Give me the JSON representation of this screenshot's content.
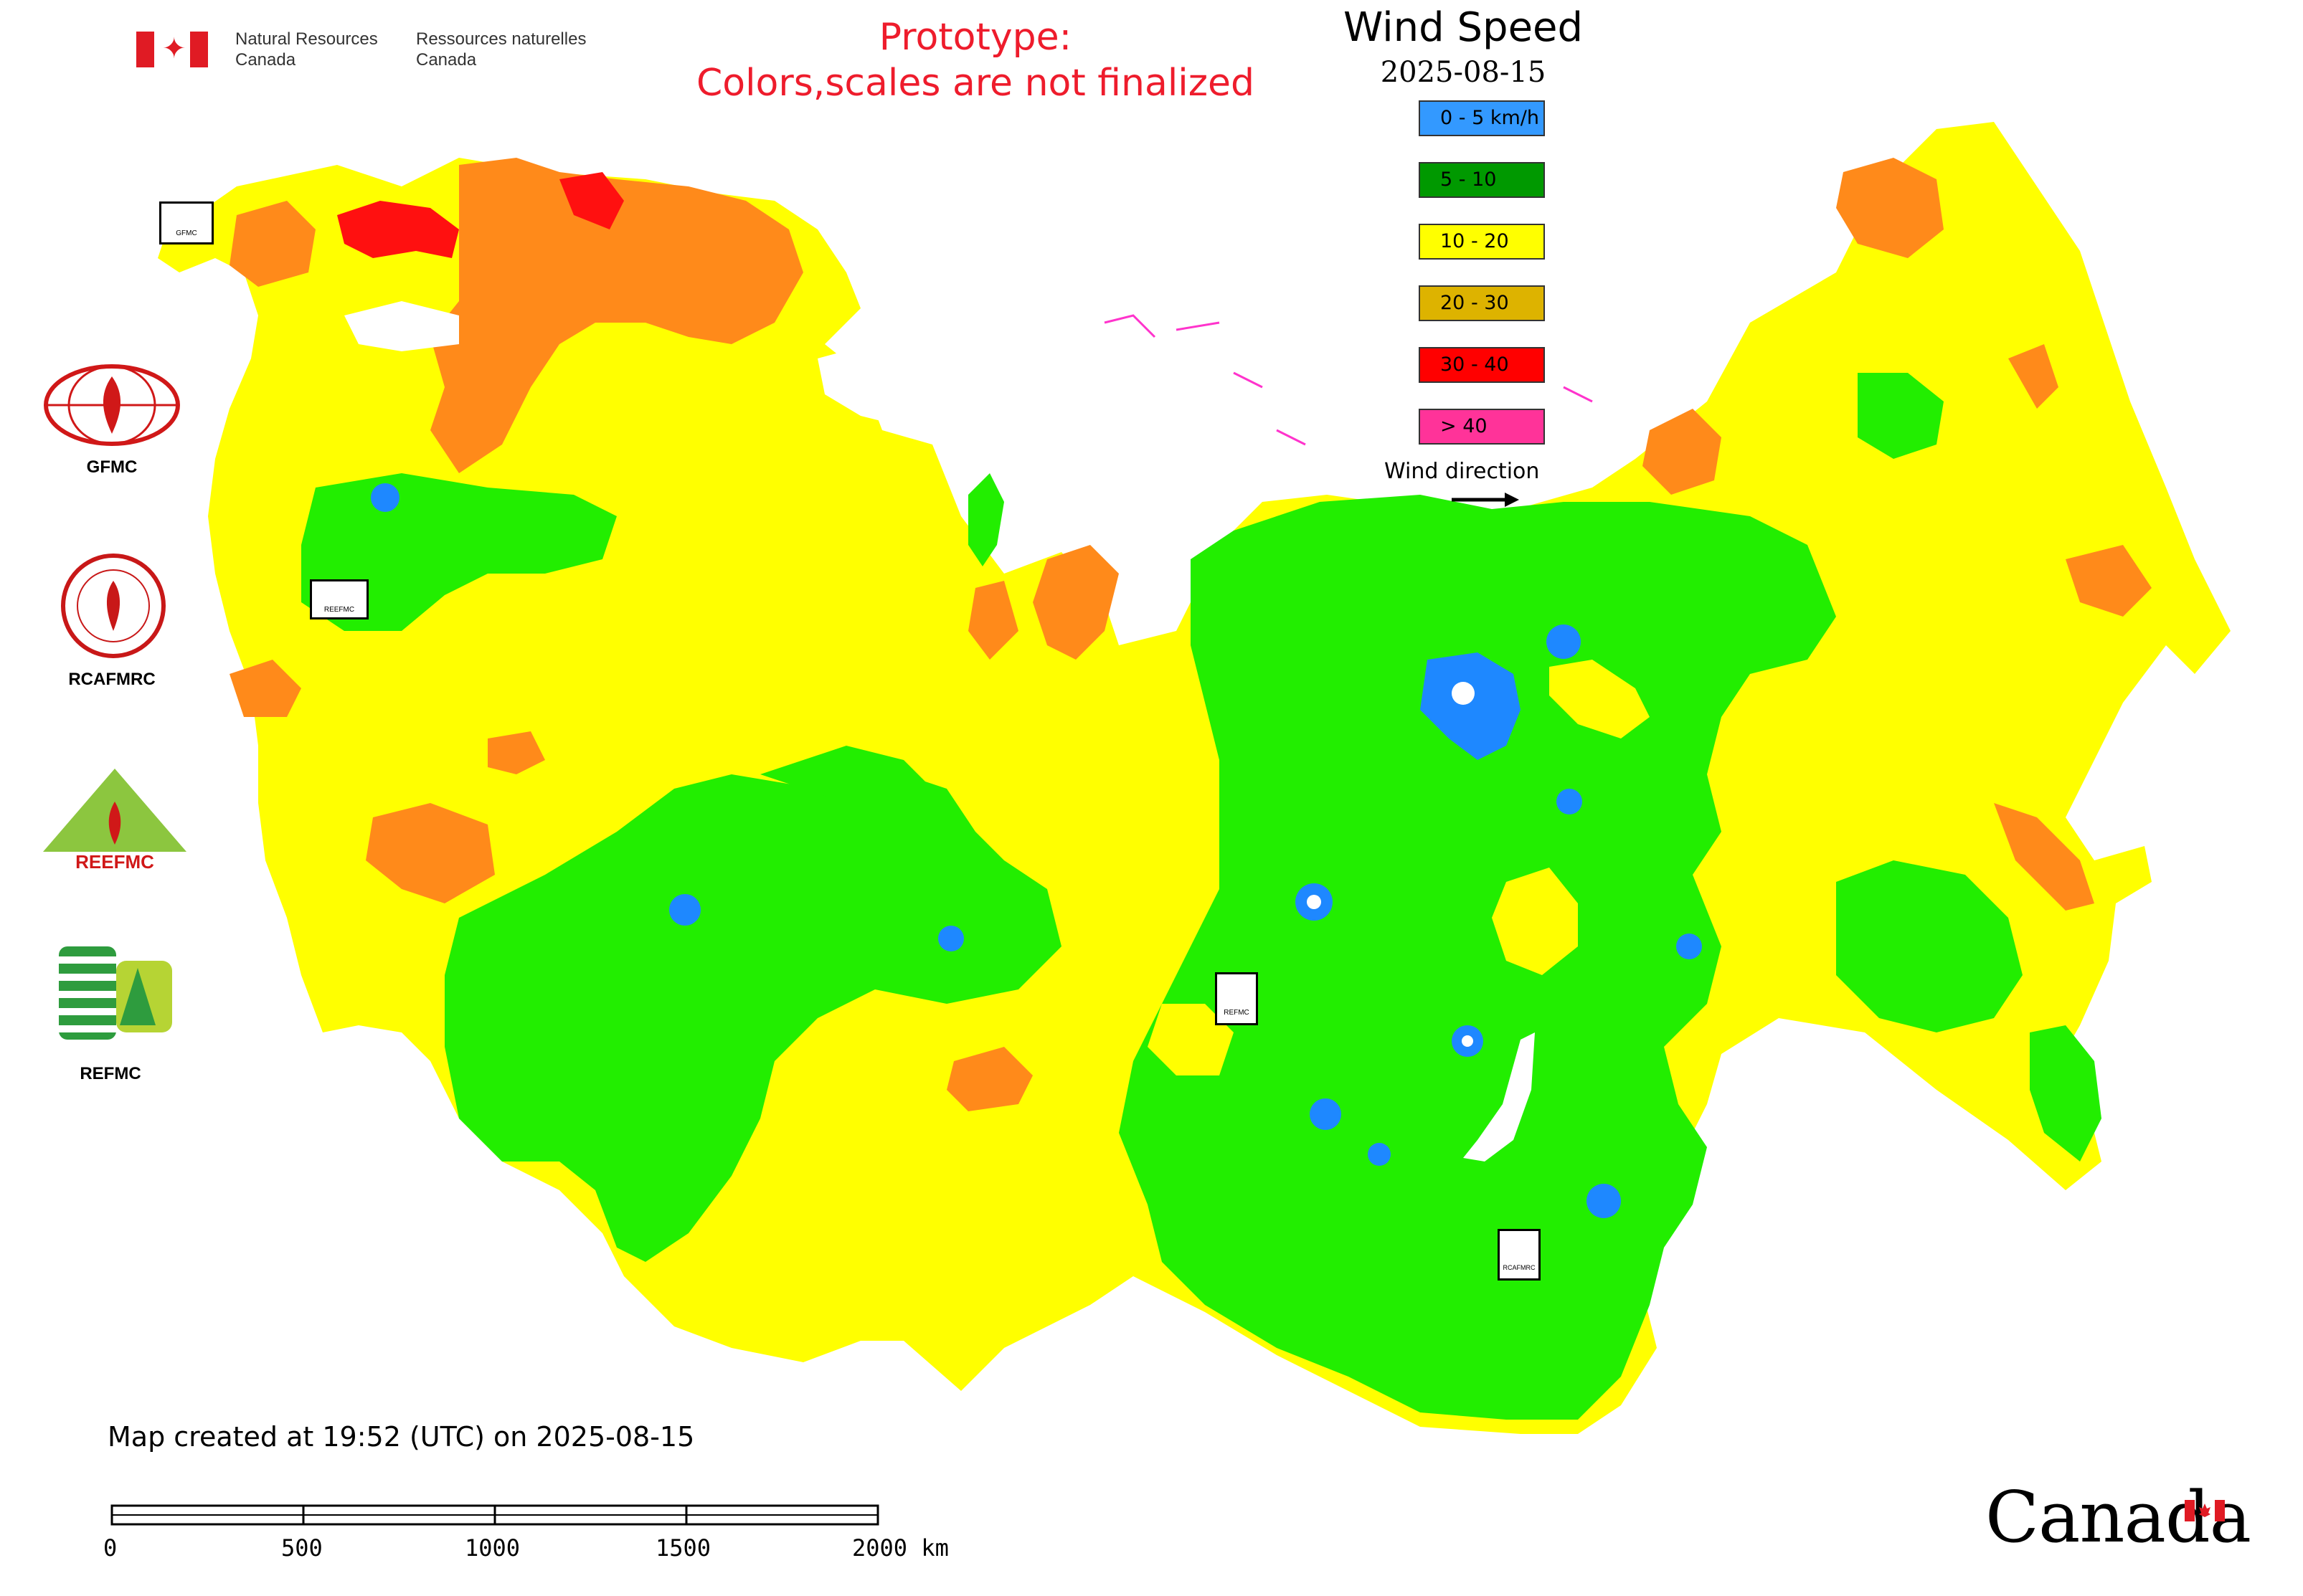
{
  "header": {
    "agency_en": "Natural Resources Canada",
    "agency_fr": "Ressources naturelles Canada",
    "prototype_line1": "Prototype:",
    "prototype_line2": "Colors,scales are not finalized"
  },
  "legend": {
    "title": "Wind Speed",
    "date": "2025-08-15",
    "items": [
      {
        "label": "0 - 5 km/h",
        "color": "#3399ff"
      },
      {
        "label": "5 - 10",
        "color": "#009900"
      },
      {
        "label": "10 - 20",
        "color": "#ffff00"
      },
      {
        "label": "20 - 30",
        "color": "#ddb300"
      },
      {
        "label": "30 - 40",
        "color": "#ff0000"
      },
      {
        "label": "> 40",
        "color": "#ff3399"
      }
    ],
    "wind_direction_label": "Wind direction"
  },
  "map_colors": {
    "calm": "#1e88ff",
    "light": "#22ee00",
    "moderate": "#ffff00",
    "fresh": "#ff8a1a",
    "strong": "#ff1010",
    "very_strong": "#ff3399"
  },
  "agencies": [
    {
      "label": "GFMC",
      "icon": "gfmc-logo"
    },
    {
      "label": "RCAFMRC",
      "icon": "rcafmrc-logo"
    },
    {
      "label": "REEFMC",
      "icon": "reefmc-logo"
    },
    {
      "label": "REFMC",
      "icon": "refmc-logo"
    }
  ],
  "map_markers": [
    {
      "label": "GFMC"
    },
    {
      "label": "REEFMC"
    },
    {
      "label": "REFMC"
    },
    {
      "label": "RCAFMRC"
    }
  ],
  "footer": {
    "map_created": "Map created at 19:52 (UTC) on 2025-08-15",
    "scale_labels": [
      "0",
      "500",
      "1000",
      "1500",
      "2000 km"
    ],
    "wordmark": "Canada"
  }
}
